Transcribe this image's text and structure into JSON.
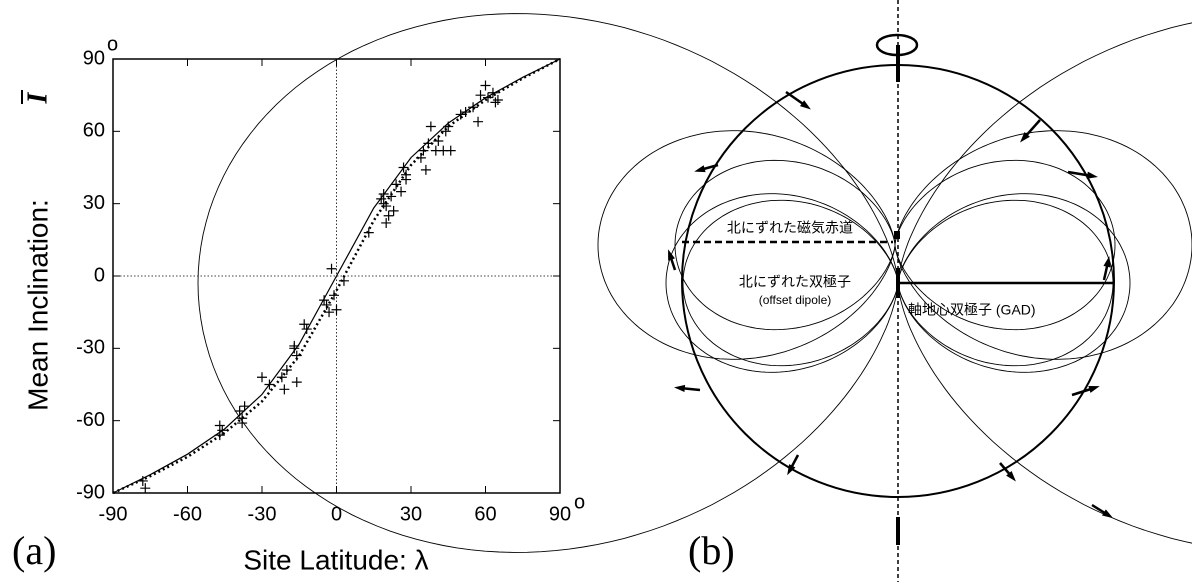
{
  "chart_data": {
    "type": "scatter",
    "panel_label": "(a)",
    "x_label": "Site Latitude: λ",
    "y_label": "Mean Inclination:",
    "y_symbol": "I",
    "degree_mark": "o",
    "xlim": [
      -90,
      90
    ],
    "ylim": [
      -90,
      90
    ],
    "xticks": [
      -90,
      -60,
      -30,
      0,
      30,
      60,
      90
    ],
    "yticks": [
      -90,
      -60,
      -30,
      0,
      30,
      60,
      90
    ],
    "zero_lines": true,
    "series": [
      {
        "style": "plus",
        "color": "#000000",
        "x": [
          -78,
          -77,
          -47,
          -47,
          -46,
          -39,
          -38,
          -38,
          -37,
          -30,
          -27,
          -22,
          -21,
          -20,
          -17,
          -16,
          -16,
          -17,
          -13,
          -12,
          -5,
          -4,
          -3,
          -2,
          -1,
          0,
          3,
          13,
          18,
          19,
          19,
          20,
          20,
          21,
          22,
          23,
          24,
          26,
          27,
          28,
          28,
          34,
          35,
          36,
          37,
          38,
          40,
          41,
          43,
          44,
          45,
          46,
          50,
          52,
          55,
          57,
          58,
          60,
          61,
          63,
          64,
          65
        ],
        "values": [
          -85,
          -88,
          -62,
          -66,
          -64,
          -56,
          -59,
          -61,
          -54,
          -42,
          -45,
          -42,
          -47,
          -39,
          -30,
          -33,
          -44,
          -29,
          -20,
          -22,
          -10,
          -12,
          -15,
          3,
          -8,
          -14,
          -2,
          18,
          32,
          34,
          30,
          29,
          22,
          25,
          33,
          27,
          38,
          35,
          45,
          40,
          42,
          49,
          52,
          44,
          55,
          62,
          52,
          56,
          52,
          60,
          62,
          52,
          67,
          68,
          70,
          64,
          75,
          79,
          74,
          76,
          72,
          73
        ]
      },
      {
        "style": "solid",
        "color": "#000000",
        "x": [
          -90,
          -75,
          -60,
          -45,
          -30,
          -15,
          0,
          15,
          30,
          45,
          60,
          75,
          90
        ],
        "values": [
          -90,
          -82.4,
          -73.9,
          -63.4,
          -49.1,
          -28.2,
          0,
          28.2,
          49.1,
          63.4,
          73.9,
          82.4,
          90
        ]
      },
      {
        "style": "dotted",
        "color": "#000000",
        "x": [
          -90,
          -75,
          -60,
          -45,
          -30,
          -15,
          0,
          15,
          30,
          45,
          60,
          75,
          90
        ],
        "values": [
          -90,
          -83,
          -75,
          -65,
          -52,
          -33,
          -6,
          23,
          46,
          62,
          73,
          82,
          90
        ]
      }
    ]
  },
  "diagram": {
    "panel_label": "(b)",
    "labels": [
      "北にずれた磁気赤道",
      "北にずれた双極子",
      "(offset dipole)",
      "軸地心双極子 (GAD)"
    ]
  }
}
